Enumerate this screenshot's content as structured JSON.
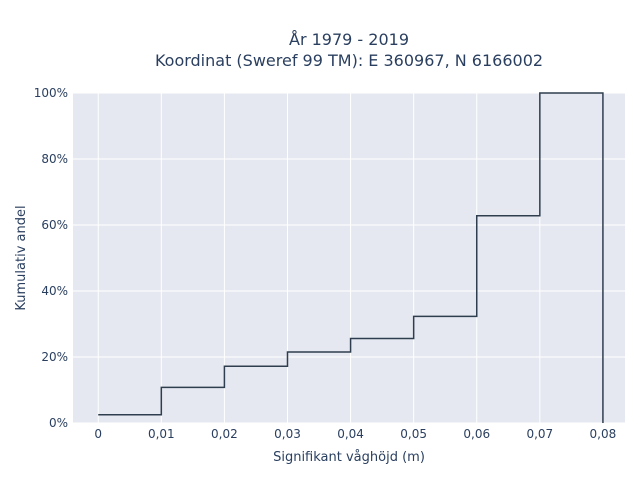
{
  "chart_data": {
    "type": "line",
    "line_shape": "step",
    "title_lines": [
      "År 1979 - 2019",
      "Koordinat (Sweref 99 TM): E 360967, N 6166002"
    ],
    "xlabel": "Signifikant våghöjd (m)",
    "ylabel": "Kumulativ andel",
    "x_ticks": [
      0,
      0.01,
      0.02,
      0.03,
      0.04,
      0.05,
      0.06,
      0.07,
      0.08
    ],
    "x_tick_labels": [
      "0",
      "0,01",
      "0,02",
      "0,03",
      "0,04",
      "0,05",
      "0,06",
      "0,07",
      "0,08"
    ],
    "y_ticks": [
      0,
      20,
      40,
      60,
      80,
      100
    ],
    "y_tick_labels": [
      "0%",
      "20%",
      "40%",
      "60%",
      "80%",
      "100%"
    ],
    "xlim": [
      -0.004,
      0.0835
    ],
    "ylim": [
      0,
      100
    ],
    "grid": true,
    "series": [
      {
        "x": [
          0,
          0.01,
          0.01,
          0.02,
          0.02,
          0.03,
          0.03,
          0.04,
          0.04,
          0.05,
          0.05,
          0.06,
          0.06,
          0.07,
          0.07,
          0.08,
          0.08
        ],
        "y": [
          2.5,
          2.5,
          10.8,
          10.8,
          17.2,
          17.2,
          21.5,
          21.5,
          25.6,
          25.6,
          32.3,
          32.3,
          62.8,
          62.8,
          100,
          100,
          0
        ]
      }
    ],
    "colors": {
      "line": "#2f3e4e",
      "plot_bg": "#e5e8f0",
      "grid": "#ffffff",
      "text": "#2a3f5f"
    }
  }
}
